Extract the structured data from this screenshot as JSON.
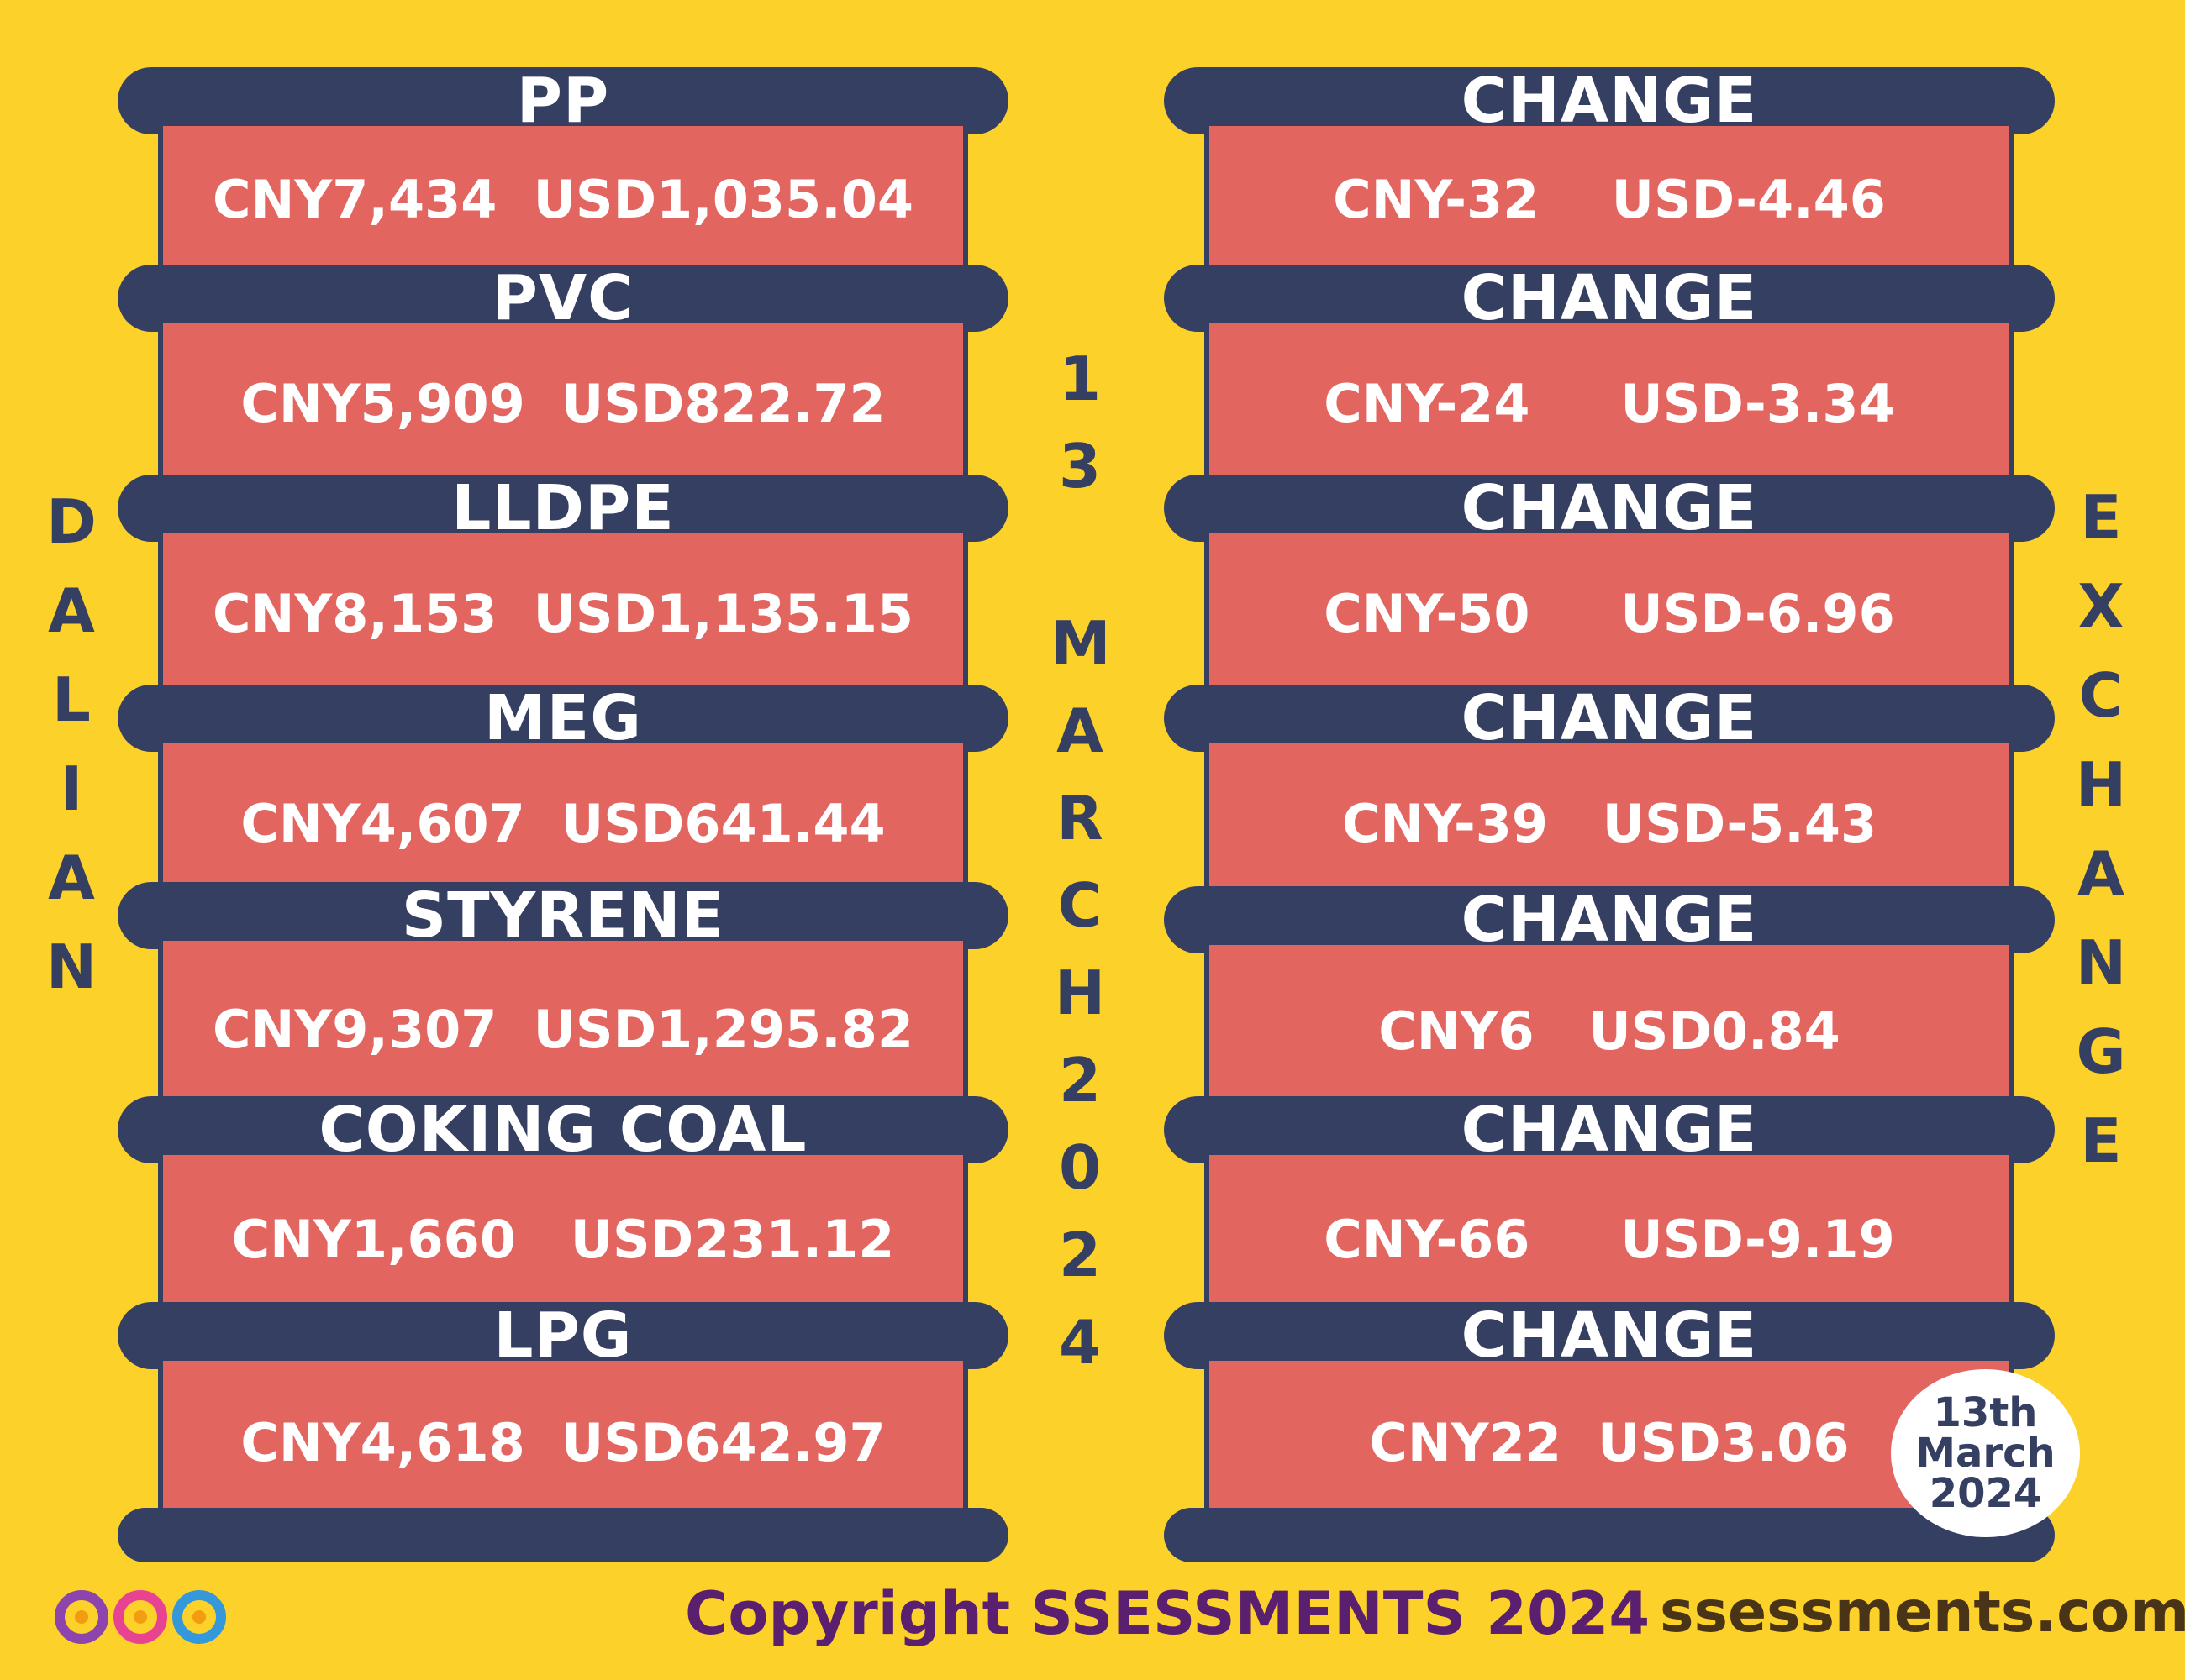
{
  "left_heading": "DALIAN",
  "right_heading": "EXCHANGE",
  "center_date": {
    "day": "13",
    "month": "MARCH",
    "year": "2024"
  },
  "products": [
    {
      "name": "PP",
      "price": "CNY7,434  USD1,035.04",
      "change_label": "CHANGE",
      "change": "CNY-32    USD-4.46"
    },
    {
      "name": "PVC",
      "price": "CNY5,909  USD822.72",
      "change_label": "CHANGE",
      "change": "CNY-24     USD-3.34"
    },
    {
      "name": "LLDPE",
      "price": "CNY8,153  USD1,135.15",
      "change_label": "CHANGE",
      "change": "CNY-50     USD-6.96"
    },
    {
      "name": "MEG",
      "price": "CNY4,607  USD641.44",
      "change_label": "CHANGE",
      "change": "CNY-39   USD-5.43"
    },
    {
      "name": "STYRENE",
      "price": "CNY9,307  USD1,295.82",
      "change_label": "CHANGE",
      "change": "CNY6   USD0.84"
    },
    {
      "name": "COKING COAL",
      "price": "CNY1,660   USD231.12",
      "change_label": "CHANGE",
      "change": "CNY-66     USD-9.19"
    },
    {
      "name": "LPG",
      "price": "CNY4,618  USD642.97",
      "change_label": "CHANGE",
      "change": "CNY22  USD3.06"
    }
  ],
  "badge": {
    "line1": "13th",
    "line2": "March",
    "line3": "2024"
  },
  "footer": {
    "copyright": "Copyright SSESSMENTS 2024",
    "site": "ssessments.com"
  },
  "colors": {
    "background": "#fcd22a",
    "bar": "#353f62",
    "panel": "#e36560"
  }
}
